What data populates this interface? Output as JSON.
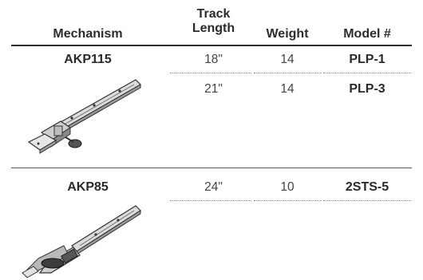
{
  "table": {
    "headers": {
      "mechanism": "Mechanism",
      "track_length": "Track Length",
      "weight": "Weight",
      "model": "Model #"
    },
    "groups": [
      {
        "mechanism": "AKP115",
        "rows": [
          {
            "track_length": "18\"",
            "weight": "14",
            "model": "PLP-1"
          },
          {
            "track_length": "21\"",
            "weight": "14",
            "model": "PLP-3"
          }
        ]
      },
      {
        "mechanism": "AKP85",
        "rows": [
          {
            "track_length": "24\"",
            "weight": "10",
            "model": "2STS-5"
          }
        ]
      }
    ]
  }
}
